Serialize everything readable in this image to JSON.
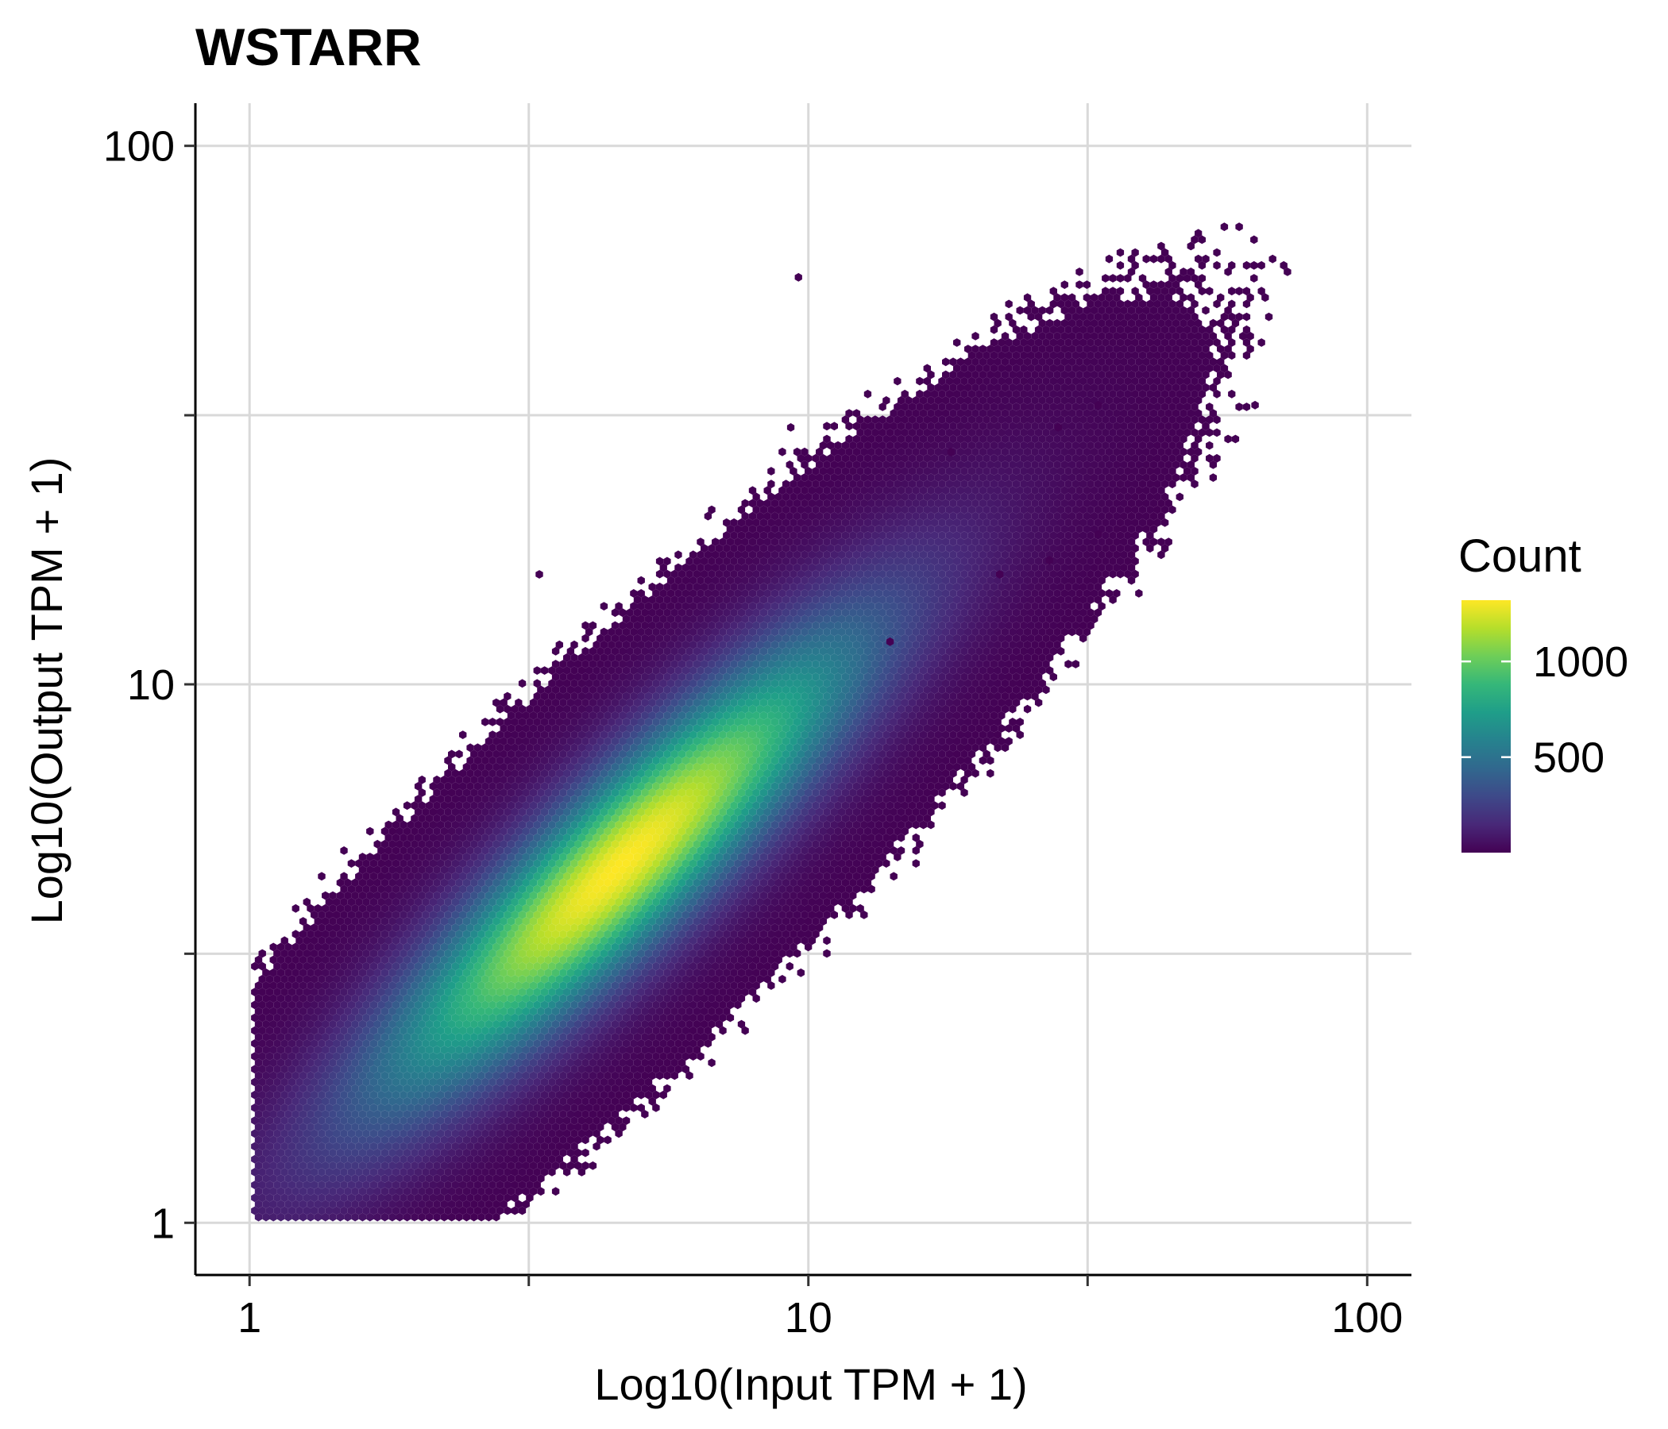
{
  "chart_data": {
    "type": "hexbin",
    "title": "WSTARR",
    "xlabel": "Log10(Input TPM + 1)",
    "ylabel": "Log10(Output TPM + 1)",
    "x_scale": "log10",
    "y_scale": "log10",
    "xlim": [
      0.8,
      120
    ],
    "ylim": [
      0.8,
      120
    ],
    "x_ticks": [
      {
        "value": 1,
        "label": "1"
      },
      {
        "value": 10,
        "label": "10"
      },
      {
        "value": 100,
        "label": "100"
      }
    ],
    "y_ticks": [
      {
        "value": 1,
        "label": "1"
      },
      {
        "value": 10,
        "label": "10"
      },
      {
        "value": 100,
        "label": "100"
      }
    ],
    "minor_breaks": [
      3.16,
      31.6
    ],
    "grid": true,
    "density": {
      "peak_x": 4.6,
      "peak_y": 4.6,
      "peak_count": 1300,
      "correlation": 0.9,
      "description_of_spread_log10": 0.33
    },
    "outlier_points": [
      {
        "x": 9.6,
        "y": 57
      },
      {
        "x": 33,
        "y": 33
      },
      {
        "x": 63,
        "y": 33
      },
      {
        "x": 28,
        "y": 30
      },
      {
        "x": 9.3,
        "y": 30
      },
      {
        "x": 18,
        "y": 27
      },
      {
        "x": 33,
        "y": 19
      },
      {
        "x": 27,
        "y": 17
      },
      {
        "x": 22,
        "y": 16
      },
      {
        "x": 3.3,
        "y": 16
      },
      {
        "x": 14,
        "y": 12
      }
    ],
    "legend": {
      "title": "Count",
      "placement": "right",
      "colorscale": "viridis",
      "range": [
        1,
        1320
      ],
      "ticks": [
        {
          "value": 500,
          "label": "500"
        },
        {
          "value": 1000,
          "label": "1000"
        }
      ]
    },
    "colors": {
      "viridis_stops": [
        "#440154",
        "#482878",
        "#3e4989",
        "#31688e",
        "#26828e",
        "#1f9e89",
        "#35b779",
        "#6ece58",
        "#b5de2b",
        "#fde725"
      ],
      "grid": "#d9d9d9",
      "axis": "#000000"
    }
  }
}
